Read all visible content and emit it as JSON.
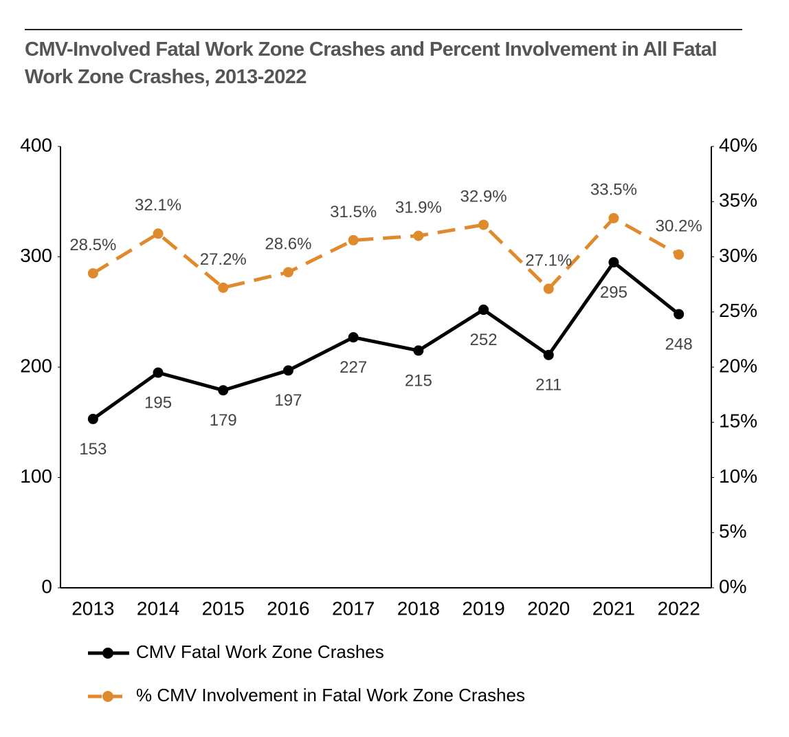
{
  "chart_data": {
    "type": "line",
    "title": "CMV-Involved Fatal Work Zone Crashes and Percent Involvement in All Fatal Work Zone Crashes, 2013-2022",
    "categories": [
      "2013",
      "2014",
      "2015",
      "2016",
      "2017",
      "2018",
      "2019",
      "2020",
      "2021",
      "2022"
    ],
    "series": [
      {
        "name": "CMV Fatal Work Zone Crashes",
        "color": "#000000",
        "values": [
          153,
          195,
          179,
          197,
          227,
          215,
          252,
          211,
          295,
          248
        ]
      },
      {
        "name": "% CMV Involvement in Fatal Work Zone Crashes",
        "color": "#e08a2e",
        "axis": "y2",
        "dashed": true,
        "values": [
          28.5,
          32.1,
          27.2,
          28.6,
          31.5,
          31.9,
          32.9,
          27.1,
          33.5,
          30.2
        ],
        "value_labels": [
          "28.5%",
          "32.1%",
          "27.2%",
          "28.6%",
          "31.5%",
          "31.9%",
          "32.9%",
          "27.1%",
          "33.5%",
          "30.2%"
        ]
      }
    ],
    "ylim": [
      0,
      400
    ],
    "yticks": [
      0,
      100,
      200,
      300,
      400
    ],
    "y2lim": [
      0,
      40
    ],
    "y2ticks": [
      {
        "value": 0,
        "label": "0%"
      },
      {
        "value": 5,
        "label": "5%"
      },
      {
        "value": 10,
        "label": "10%"
      },
      {
        "value": 15,
        "label": "15%"
      },
      {
        "value": 20,
        "label": "20%"
      },
      {
        "value": 25,
        "label": "25%"
      },
      {
        "value": 30,
        "label": "30%"
      },
      {
        "value": 35,
        "label": "35%"
      },
      {
        "value": 40,
        "label": "40%"
      }
    ],
    "grid": false
  }
}
